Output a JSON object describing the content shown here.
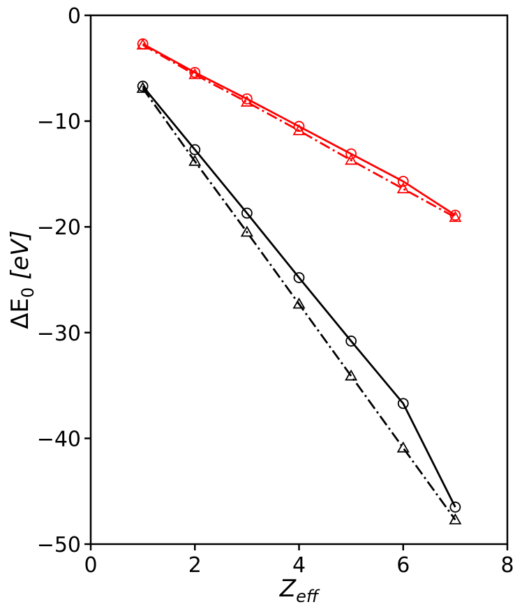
{
  "chart_data": {
    "type": "line",
    "xlabel": "Z",
    "xlabel_sub": "eff",
    "ylabel_prefix": "ΔE",
    "ylabel_sub": "0",
    "ylabel_suffix": " [eV]",
    "xlim": [
      0,
      8
    ],
    "ylim": [
      -50,
      0
    ],
    "xticks": [
      0,
      2,
      4,
      6,
      8
    ],
    "yticks": [
      0,
      -10,
      -20,
      -30,
      -40,
      -50
    ],
    "xtick_labels": [
      "0",
      "2",
      "4",
      "6",
      "8"
    ],
    "ytick_labels": [
      "0",
      "−10",
      "−20",
      "−30",
      "−40",
      "−50"
    ],
    "grid": false,
    "x": [
      1,
      2,
      3,
      4,
      5,
      6,
      7
    ],
    "series": [
      {
        "color": "#000000",
        "linestyle": "solid",
        "marker": "circle",
        "values": [
          -6.7,
          -12.7,
          -18.7,
          -24.8,
          -30.8,
          -36.7,
          -46.5
        ]
      },
      {
        "color": "#000000",
        "linestyle": "dashdot",
        "marker": "triangle",
        "values": [
          -6.9,
          -13.8,
          -20.5,
          -27.3,
          -34.1,
          -40.9,
          -47.7
        ]
      },
      {
        "color": "#ff0000",
        "linestyle": "solid",
        "marker": "circle",
        "values": [
          -2.7,
          -5.4,
          -7.9,
          -10.5,
          -13.1,
          -15.7,
          -18.9
        ]
      },
      {
        "color": "#ff0000",
        "linestyle": "dashdot",
        "marker": "triangle",
        "values": [
          -2.8,
          -5.6,
          -8.2,
          -10.9,
          -13.7,
          -16.4,
          -19.1
        ]
      }
    ]
  }
}
